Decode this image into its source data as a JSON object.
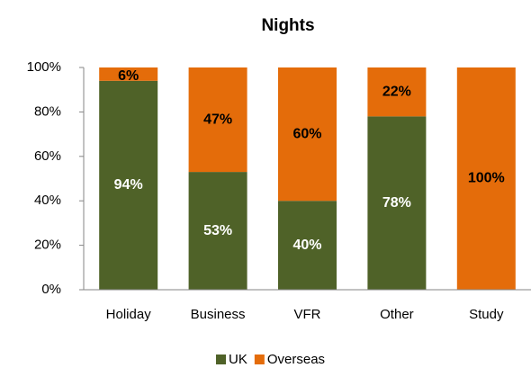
{
  "chart_data": {
    "type": "bar",
    "stacked": true,
    "title": "Nights",
    "categories": [
      "Holiday",
      "Business",
      "VFR",
      "Other",
      "Study"
    ],
    "series": [
      {
        "name": "UK",
        "color": "#4f6228",
        "values": [
          94,
          53,
          40,
          78,
          0
        ],
        "value_labels": [
          "94%",
          "53%",
          "40%",
          "78%",
          null
        ]
      },
      {
        "name": "Overseas",
        "color": "#e46c0a",
        "values": [
          6,
          47,
          60,
          22,
          100
        ],
        "value_labels": [
          "6%",
          "47%",
          "60%",
          "22%",
          "100%"
        ]
      }
    ],
    "ylim": [
      0,
      100
    ],
    "yticks": [
      {
        "value": 0,
        "label": "0%"
      },
      {
        "value": 20,
        "label": "20%"
      },
      {
        "value": 40,
        "label": "40%"
      },
      {
        "value": 60,
        "label": "60%"
      },
      {
        "value": 80,
        "label": "80%"
      },
      {
        "value": 100,
        "label": "100%"
      }
    ],
    "grid": false,
    "legend": "bottom"
  }
}
